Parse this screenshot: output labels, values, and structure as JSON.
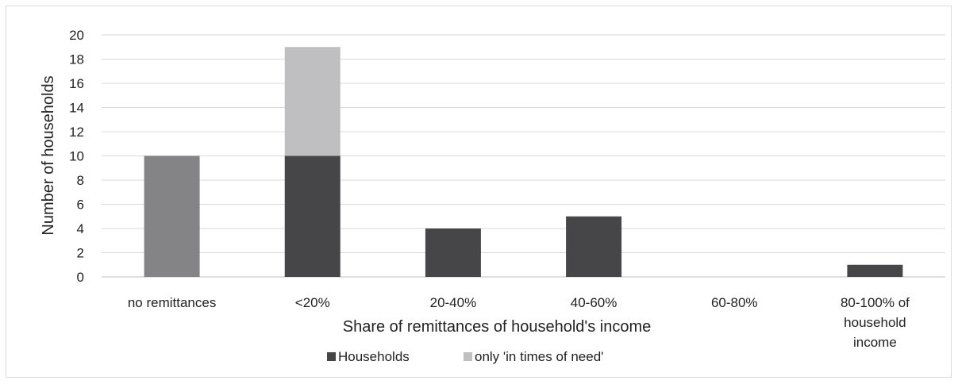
{
  "chart_data": {
    "type": "bar",
    "stacked": true,
    "categories": [
      "no remittances",
      "<20%",
      "20-40%",
      "40-60%",
      "60-80%",
      "80-100% of household income"
    ],
    "category_lines": [
      [
        "no remittances"
      ],
      [
        "<20%"
      ],
      [
        "20-40%"
      ],
      [
        "40-60%"
      ],
      [
        "60-80%"
      ],
      [
        "80-100% of",
        "household",
        "income"
      ]
    ],
    "series": [
      {
        "name": "Households",
        "values": [
          10,
          10,
          4,
          5,
          0,
          1
        ],
        "color": "#464648"
      },
      {
        "name": "only 'in times of need'",
        "values": [
          0,
          9,
          0,
          0,
          0,
          0
        ],
        "color": "#bfbfc1"
      }
    ],
    "special_bar_colors": {
      "no remittances": "#848486"
    },
    "xlabel": "Share of remittances of household's income",
    "ylabel": "Number of households",
    "ylim": [
      0,
      20
    ],
    "yticks": [
      0,
      2,
      4,
      6,
      8,
      10,
      12,
      14,
      16,
      18,
      20
    ],
    "grid": true,
    "legend_position": "bottom",
    "colors": {
      "gridline": "#d9d9d9",
      "axis": "#bfbfbf",
      "text": "#222222"
    }
  }
}
